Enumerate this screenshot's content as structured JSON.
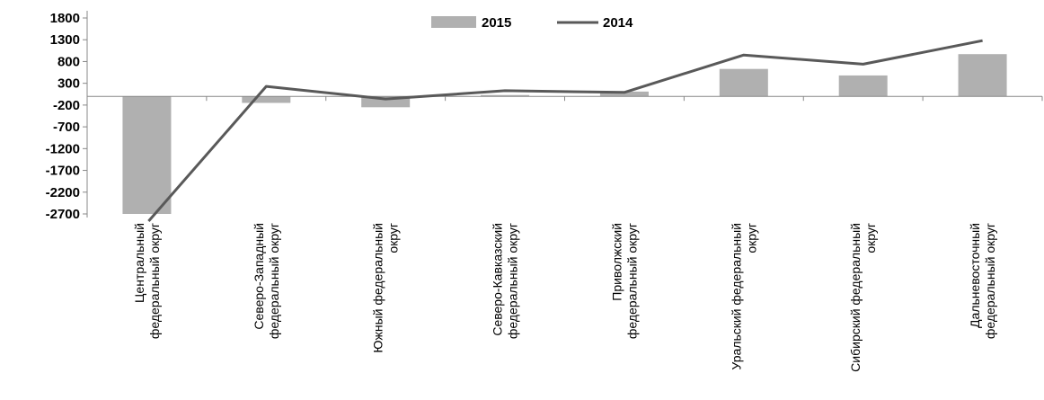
{
  "chart_data": {
    "type": "bar",
    "categories": [
      [
        "Центральный",
        "федеральный округ"
      ],
      [
        "Северо-Западный",
        "федеральный округ"
      ],
      [
        "Южный федеральный",
        "округ"
      ],
      [
        "Северо-Кавказский",
        "федеральный округ"
      ],
      [
        "Приволжский",
        "федеральный округ"
      ],
      [
        "Уральский федеральный",
        "округ"
      ],
      [
        "Сибирский федеральный",
        "округ"
      ],
      [
        "Дальневосточный",
        "федеральный округ"
      ]
    ],
    "series": [
      {
        "name": "2015",
        "type": "bar",
        "color": "#b0b0b0",
        "values": [
          -2700,
          -150,
          -250,
          30,
          110,
          630,
          480,
          970
        ]
      },
      {
        "name": "2014",
        "type": "line",
        "color": "#595959",
        "values": [
          -2700,
          230,
          -60,
          130,
          90,
          950,
          740,
          1280
        ]
      }
    ],
    "yticks": [
      1800,
      1300,
      800,
      300,
      -200,
      -700,
      -1200,
      -1700,
      -2200,
      -2700
    ],
    "ylim": [
      -2700,
      1800
    ],
    "title": "",
    "xlabel": "",
    "ylabel": "",
    "grid": false,
    "legend": "top-center"
  }
}
